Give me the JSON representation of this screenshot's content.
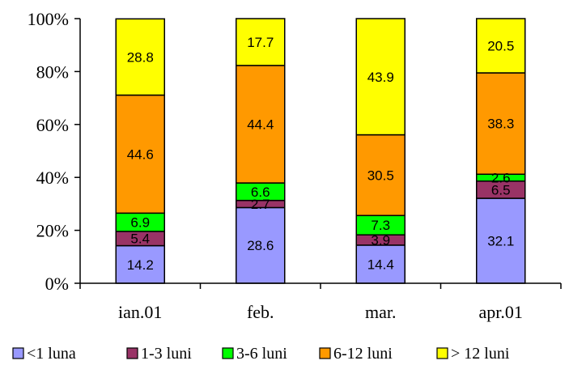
{
  "chart_data": {
    "type": "bar",
    "stacked": true,
    "percent_stacked": true,
    "categories": [
      "ian.01",
      "feb.",
      "mar.",
      "apr.01"
    ],
    "series": [
      {
        "name": "<1 luna",
        "color": "#9999ff",
        "values": [
          14.2,
          28.6,
          14.4,
          32.1
        ]
      },
      {
        "name": "1-3 luni",
        "color": "#993366",
        "values": [
          5.4,
          2.7,
          3.9,
          6.5
        ]
      },
      {
        "name": "3-6 luni",
        "color": "#00ff00",
        "values": [
          6.9,
          6.6,
          7.3,
          2.6
        ]
      },
      {
        "name": "6-12 luni",
        "color": "#ff9900",
        "values": [
          44.6,
          44.4,
          30.5,
          38.3
        ]
      },
      {
        "name": "> 12 luni",
        "color": "#ffff00",
        "values": [
          28.8,
          17.7,
          43.9,
          20.5
        ]
      }
    ],
    "y_ticks": [
      "0%",
      "20%",
      "40%",
      "60%",
      "80%",
      "100%"
    ],
    "ylim": [
      0,
      100
    ],
    "grid": false,
    "legend_position": "bottom",
    "title": "",
    "xlabel": "",
    "ylabel": ""
  }
}
